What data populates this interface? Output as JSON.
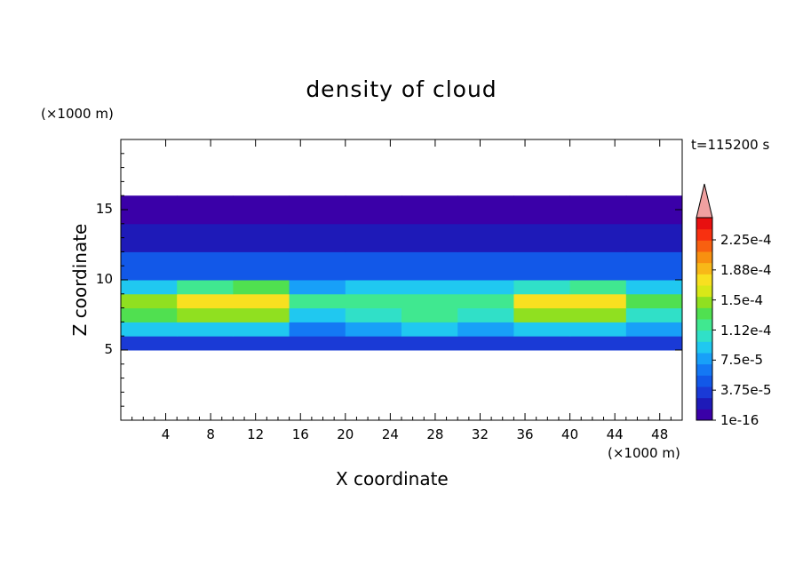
{
  "chart_data": {
    "type": "heatmap",
    "title": "density of cloud",
    "xlabel": "X coordinate",
    "ylabel": "Z coordinate",
    "x_unit": "(×1000 m)",
    "y_unit": "(×1000 m)",
    "timestamp": "t=115200 s",
    "xlim": [
      0,
      50
    ],
    "ylim": [
      0,
      20
    ],
    "x_ticks": [
      4,
      8,
      12,
      16,
      20,
      24,
      28,
      32,
      36,
      40,
      44,
      48
    ],
    "y_ticks": [
      5,
      10,
      15
    ],
    "colorbar": {
      "labels": [
        "2.25e-4",
        "1.88e-4",
        "1.5e-4",
        "1.12e-4",
        "7.5e-5",
        "3.75e-5",
        "1e-16"
      ],
      "colors": [
        "#3a00a8",
        "#1e1ab8",
        "#1a3ad6",
        "#1258e8",
        "#1478f4",
        "#18a0f8",
        "#20c8f0",
        "#30e0c8",
        "#40e890",
        "#50e050",
        "#90e020",
        "#d8e818",
        "#f8e020",
        "#f8b818",
        "#f89010",
        "#f86010",
        "#f83010",
        "#e81010"
      ],
      "extend_color": "#f0a0a0"
    },
    "field": {
      "x": [
        0,
        5,
        10,
        15,
        20,
        25,
        30,
        35,
        40,
        45,
        50
      ],
      "bands": [
        {
          "z_range": [
            5,
            6
          ],
          "level_idx": [
            2,
            2,
            2,
            2,
            2,
            2,
            2,
            2,
            2,
            2,
            2
          ]
        },
        {
          "z_range": [
            6,
            7
          ],
          "level_idx": [
            6,
            6,
            6,
            4,
            5,
            6,
            5,
            6,
            6,
            5,
            6
          ]
        },
        {
          "z_range": [
            7,
            8
          ],
          "level_idx": [
            9,
            10,
            10,
            6,
            7,
            8,
            7,
            10,
            10,
            7,
            9
          ]
        },
        {
          "z_range": [
            8,
            9
          ],
          "level_idx": [
            10,
            12,
            12,
            8,
            8,
            8,
            8,
            12,
            12,
            9,
            10
          ]
        },
        {
          "z_range": [
            9,
            10
          ],
          "level_idx": [
            6,
            8,
            9,
            5,
            6,
            6,
            6,
            7,
            8,
            6,
            6
          ]
        },
        {
          "z_range": [
            10,
            12
          ],
          "level_idx": [
            3,
            3,
            3,
            3,
            3,
            3,
            3,
            3,
            3,
            3,
            3
          ]
        },
        {
          "z_range": [
            12,
            14
          ],
          "level_idx": [
            1,
            1,
            1,
            1,
            1,
            1,
            1,
            1,
            1,
            1,
            1
          ]
        },
        {
          "z_range": [
            14,
            16
          ],
          "level_idx": [
            0,
            0,
            0,
            0,
            0,
            0,
            0,
            0,
            0,
            0,
            0
          ]
        }
      ]
    }
  }
}
